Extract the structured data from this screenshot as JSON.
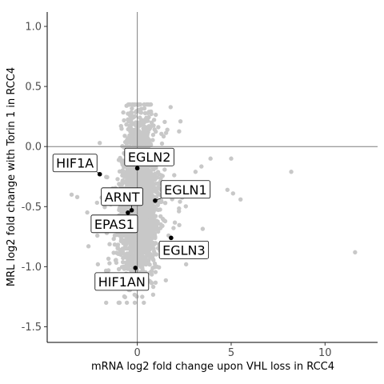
{
  "chart_data": {
    "type": "scatter",
    "title": "",
    "xlabel": "mRNA log2 fold change upon VHL loss in RCC4",
    "ylabel": "MRL log2 fold change with Torin 1 in RCC4",
    "xlim": [
      -4.8,
      12.8
    ],
    "ylim": [
      -1.63,
      1.12
    ],
    "x_ticks": [
      0,
      5,
      10
    ],
    "y_ticks": [
      1.0,
      0.5,
      0.0,
      -0.5,
      -1.0,
      -1.5
    ],
    "x_tick_labels": [
      "0",
      "5",
      "10"
    ],
    "y_tick_labels": [
      "1.0",
      "0.5",
      "0.0",
      "-0.5",
      "-1.0",
      "-1.5"
    ],
    "reference_lines": {
      "x": 0,
      "y": 0
    },
    "grid": false,
    "legend": "none",
    "colors": {
      "background_points": "#c8c8c8",
      "highlight_points": "#000000",
      "reference_line": "#7f7f7f"
    },
    "highlighted": [
      {
        "label": "EGLN2",
        "x": 0.0,
        "y": -0.18
      },
      {
        "label": "HIF1A",
        "x": -2.0,
        "y": -0.23
      },
      {
        "label": "EGLN1",
        "x": 0.95,
        "y": -0.45
      },
      {
        "label": "ARNT",
        "x": -0.3,
        "y": -0.53
      },
      {
        "label": "EPAS1",
        "x": -0.5,
        "y": -0.55
      },
      {
        "label": "EGLN3",
        "x": 1.8,
        "y": -0.76
      },
      {
        "label": "HIF1AN",
        "x": -0.1,
        "y": -1.01
      }
    ],
    "outliers": [
      {
        "x": 11.6,
        "y": -0.88
      },
      {
        "x": 8.2,
        "y": -0.21
      },
      {
        "x": 5.5,
        "y": -0.44
      },
      {
        "x": 4.8,
        "y": -0.36
      },
      {
        "x": 5.1,
        "y": -0.39
      },
      {
        "x": 5.0,
        "y": -0.1
      },
      {
        "x": 3.9,
        "y": -0.1
      },
      {
        "x": 3.1,
        "y": -0.21
      },
      {
        "x": 2.3,
        "y": 0.21
      },
      {
        "x": 1.6,
        "y": 0.14
      },
      {
        "x": -2.0,
        "y": 0.03
      },
      {
        "x": -2.6,
        "y": -0.83
      },
      {
        "x": -2.1,
        "y": -0.98
      },
      {
        "x": 2.6,
        "y": -0.98
      },
      {
        "x": -3.2,
        "y": -0.42
      },
      {
        "x": -3.5,
        "y": -0.4
      }
    ]
  }
}
